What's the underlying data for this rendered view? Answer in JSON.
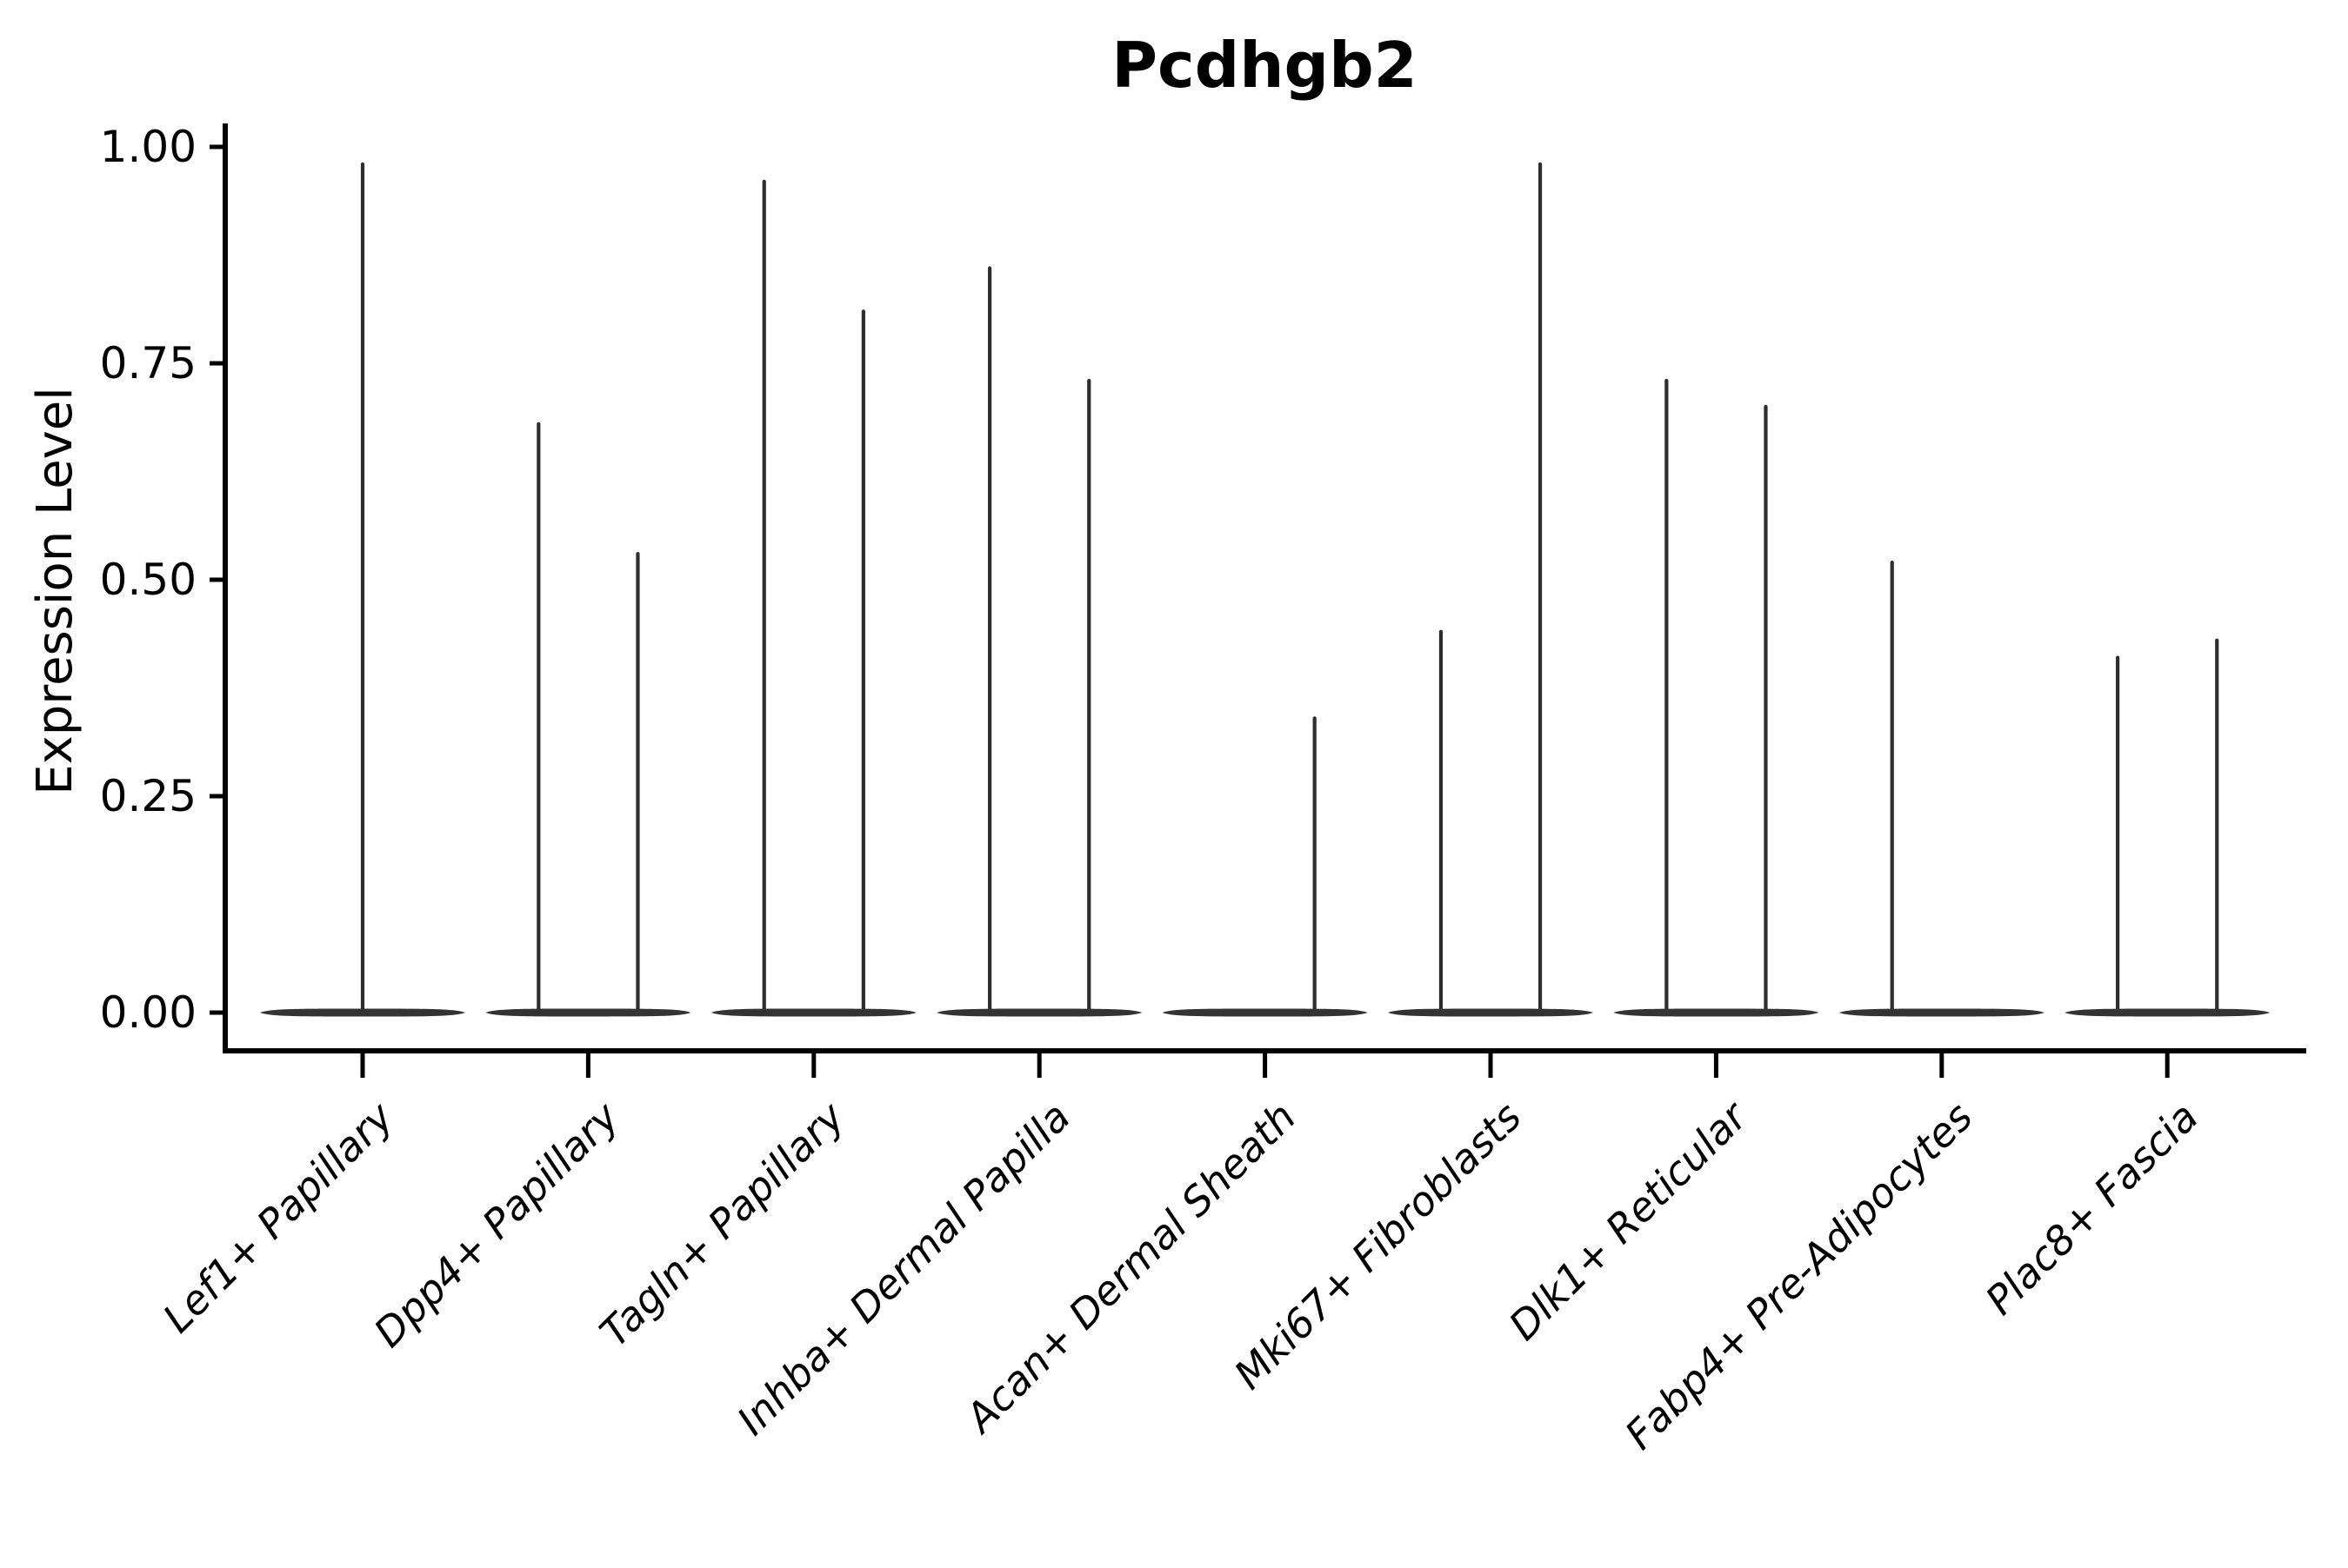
{
  "chart_data": {
    "type": "violin",
    "title": "Pcdhgb2",
    "ylabel": "Expression Level",
    "xlabel": "",
    "ylim": [
      0.0,
      1.05
    ],
    "grid": false,
    "legend_position": "none",
    "ytick_labels": [
      "1.00",
      "0.75",
      "0.50",
      "0.25",
      "0.00"
    ],
    "ytick_values": [
      1.0,
      0.75,
      0.5,
      0.25,
      0.0
    ],
    "baseline_value": 0.0,
    "categories": [
      {
        "label": "Lef1+ Papillary",
        "spikes": [
          {
            "offset": 0.0,
            "max": 0.98
          }
        ]
      },
      {
        "label": "Dpp4+ Papillary",
        "spikes": [
          {
            "offset": -0.22,
            "max": 0.68
          },
          {
            "offset": 0.22,
            "max": 0.53
          }
        ]
      },
      {
        "label": "Tagln+ Papillary",
        "spikes": [
          {
            "offset": -0.22,
            "max": 0.96
          },
          {
            "offset": 0.22,
            "max": 0.81
          }
        ]
      },
      {
        "label": "Inhba+ Dermal Papilla",
        "spikes": [
          {
            "offset": -0.22,
            "max": 0.86
          },
          {
            "offset": 0.22,
            "max": 0.73
          }
        ]
      },
      {
        "label": "Acan+ Dermal Sheath",
        "spikes": [
          {
            "offset": 0.22,
            "max": 0.34
          }
        ]
      },
      {
        "label": "Mki67+ Fibroblasts",
        "spikes": [
          {
            "offset": -0.22,
            "max": 0.44
          },
          {
            "offset": 0.22,
            "max": 0.98
          }
        ]
      },
      {
        "label": "Dlk1+ Reticular",
        "spikes": [
          {
            "offset": -0.22,
            "max": 0.73
          },
          {
            "offset": 0.22,
            "max": 0.7
          }
        ]
      },
      {
        "label": "Fabp4+ Pre-Adipocytes",
        "spikes": [
          {
            "offset": -0.22,
            "max": 0.52
          }
        ]
      },
      {
        "label": "Plac8+ Fascia",
        "spikes": [
          {
            "offset": -0.22,
            "max": 0.41
          },
          {
            "offset": 0.22,
            "max": 0.43
          }
        ]
      }
    ],
    "colors": {
      "violin": "#333333",
      "spike": "#2e2e2e",
      "axis": "#000000",
      "text": "#000000",
      "background": "#ffffff"
    }
  }
}
